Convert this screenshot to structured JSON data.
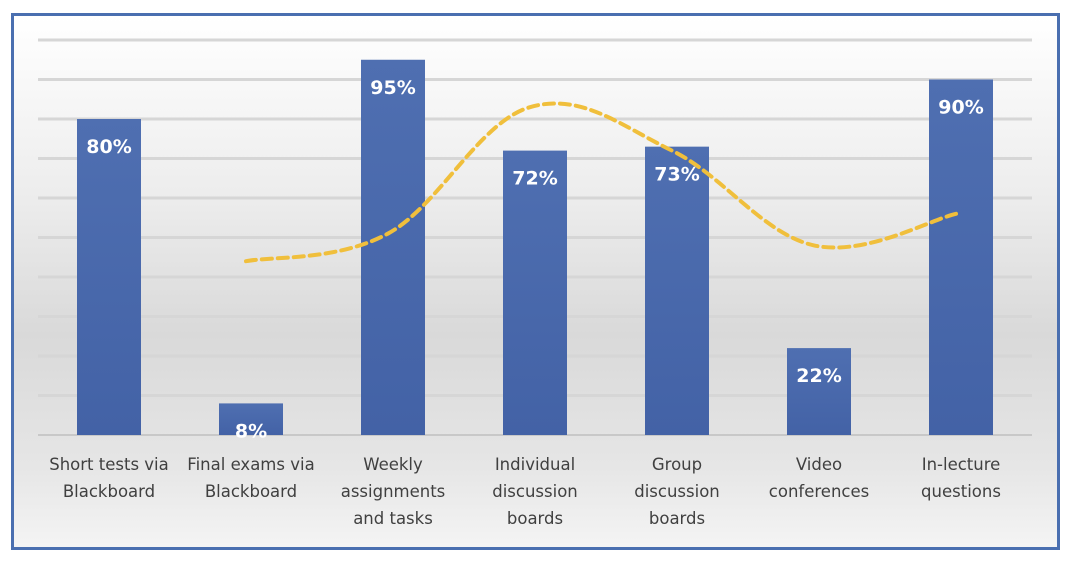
{
  "chart_data": {
    "type": "bar",
    "categories": [
      [
        "Short tests via",
        "Blackboard"
      ],
      [
        "Final exams via",
        "Blackboard"
      ],
      [
        "Weekly",
        "assignments",
        "and tasks"
      ],
      [
        "Individual",
        "discussion",
        "boards"
      ],
      [
        "Group",
        "discussion",
        "boards"
      ],
      [
        "Video",
        "conferences"
      ],
      [
        "In-lecture",
        "questions"
      ]
    ],
    "series": [
      {
        "type": "bar",
        "values": [
          80,
          8,
          95,
          72,
          73,
          22,
          90
        ],
        "labels": [
          "80%",
          "8%",
          "95%",
          "72%",
          "73%",
          "22%",
          "90%"
        ],
        "color": "#4a6aad"
      },
      {
        "type": "line",
        "style": "dashed",
        "values": [
          null,
          44,
          51,
          83,
          72,
          48,
          56
        ],
        "color": "#f0bf3c"
      }
    ],
    "ylim": [
      0,
      100
    ],
    "grid": true,
    "title": "",
    "xlabel": "",
    "ylabel": ""
  }
}
